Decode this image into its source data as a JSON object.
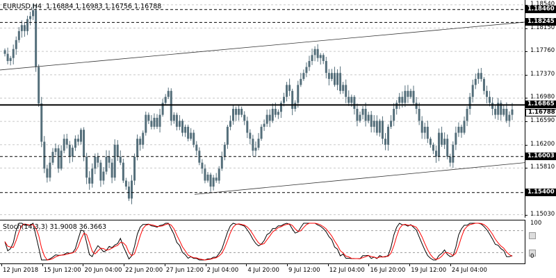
{
  "window": {
    "symbol_label": "EURUSD,H4  1.16884 1.16983 1.16756 1.16788"
  },
  "stochastic": {
    "label": "Stoch(14,3,3) 31.9008 36.3663",
    "levels": [
      "100",
      "0"
    ],
    "main_color": "#000000",
    "signal_color": "#ff0000"
  },
  "colors": {
    "background": "#ffffff",
    "candle": "#546e7a",
    "grid": "#c8c8c8",
    "levels": "#000000"
  },
  "price_axis": {
    "ticks": [
      "1.18540",
      "1.18150",
      "1.17760",
      "1.17370",
      "1.16980",
      "1.16590",
      "1.16200",
      "1.15810",
      "1.15030"
    ]
  },
  "levels": [
    {
      "label": "1.18460",
      "price": 1.1846
    },
    {
      "label": "1.18245",
      "price": 1.18245
    },
    {
      "label": "1.16865",
      "price": 1.16865
    },
    {
      "label": "1.16003",
      "price": 1.16003
    },
    {
      "label": "1.15400",
      "price": 1.154
    }
  ],
  "current_price": {
    "label": "1.16788",
    "price": 1.16788
  },
  "time_axis": {
    "labels": [
      "12 Jun 2018",
      "15 Jun 12:00",
      "20 Jun 04:00",
      "22 Jun 20:00",
      "27 Jun 12:00",
      "2 Jul 04:00",
      "4 Jul 20:00",
      "9 Jul 12:00",
      "12 Jul 04:00",
      "16 Jul 20:00",
      "19 Jul 12:00",
      "24 Jul 04:00"
    ]
  },
  "chart_data": {
    "type": "candlestick",
    "symbol": "EURUSD",
    "timeframe": "H4",
    "ylim": [
      1.1498,
      1.1862
    ],
    "close": [
      1.1772,
      1.176,
      1.1765,
      1.178,
      1.1795,
      1.181,
      1.182,
      1.181,
      1.183,
      1.1835,
      1.1845,
      1.175,
      1.1689,
      1.1625,
      1.158,
      1.1565,
      1.159,
      1.1608,
      1.1614,
      1.158,
      1.161,
      1.163,
      1.162,
      1.16,
      1.1615,
      1.163,
      1.1625,
      1.1645,
      1.16,
      1.1565,
      1.1555,
      1.158,
      1.16,
      1.159,
      1.156,
      1.1575,
      1.16,
      1.159,
      1.1565,
      1.162,
      1.16,
      1.159,
      1.156,
      1.155,
      1.153,
      1.156,
      1.16,
      1.163,
      1.162,
      1.164,
      1.167,
      1.166,
      1.165,
      1.1665,
      1.165,
      1.167,
      1.169,
      1.17,
      1.171,
      1.166,
      1.167,
      1.165,
      1.166,
      1.164,
      1.165,
      1.163,
      1.164,
      1.162,
      1.161,
      1.159,
      1.158,
      1.156,
      1.157,
      1.155,
      1.1565,
      1.156,
      1.158,
      1.16,
      1.162,
      1.165,
      1.166,
      1.168,
      1.167,
      1.168,
      1.167,
      1.166,
      1.164,
      1.163,
      1.161,
      1.1615,
      1.163,
      1.165,
      1.1655,
      1.167,
      1.166,
      1.168,
      1.167,
      1.1675,
      1.169,
      1.17,
      1.172,
      1.171,
      1.168,
      1.169,
      1.172,
      1.173,
      1.174,
      1.175,
      1.176,
      1.177,
      1.178,
      1.1765,
      1.177,
      1.176,
      1.174,
      1.173,
      1.174,
      1.172,
      1.174,
      1.171,
      1.172,
      1.17,
      1.169,
      1.17,
      1.168,
      1.166,
      1.167,
      1.168,
      1.166,
      1.167,
      1.165,
      1.166,
      1.164,
      1.166,
      1.163,
      1.162,
      1.165,
      1.166,
      1.168,
      1.169,
      1.17,
      1.169,
      1.171,
      1.17,
      1.171,
      1.169,
      1.168,
      1.166,
      1.164,
      1.165,
      1.163,
      1.162,
      1.161,
      1.16,
      1.164,
      1.162,
      1.163,
      1.16,
      1.159,
      1.162,
      1.164,
      1.165,
      1.164,
      1.166,
      1.168,
      1.17,
      1.172,
      1.173,
      1.174,
      1.173,
      1.171,
      1.17,
      1.169,
      1.168,
      1.167,
      1.169,
      1.167,
      1.168,
      1.166,
      1.167,
      1.1679
    ]
  }
}
